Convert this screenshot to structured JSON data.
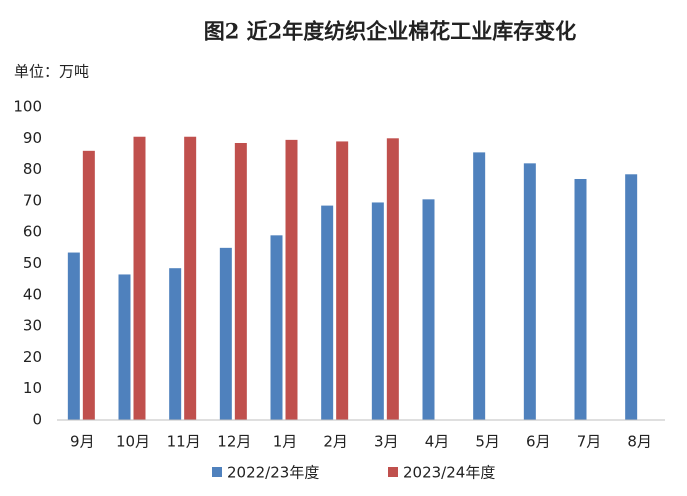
{
  "chart_data": {
    "type": "bar",
    "title": "图2 近2年度纺织企业棉花工业库存变化",
    "unit_label": "单位：万吨",
    "categories": [
      "9月",
      "10月",
      "11月",
      "12月",
      "1月",
      "2月",
      "3月",
      "4月",
      "5月",
      "6月",
      "7月",
      "8月"
    ],
    "series": [
      {
        "name": "2022/23年度",
        "color": "#4f81bd",
        "values": [
          53.5,
          46.5,
          48.5,
          55,
          59,
          68.5,
          69.5,
          70.5,
          85.5,
          82,
          77,
          78.5
        ]
      },
      {
        "name": "2023/24年度",
        "color": "#c0504d",
        "values": [
          86,
          90.5,
          90.5,
          88.5,
          89.5,
          89,
          90,
          null,
          null,
          null,
          null,
          null
        ]
      }
    ],
    "ylim": [
      0,
      100
    ],
    "yticks": [
      0,
      10,
      20,
      30,
      40,
      50,
      60,
      70,
      80,
      90,
      100
    ],
    "grid": false,
    "legend": "bottom"
  }
}
